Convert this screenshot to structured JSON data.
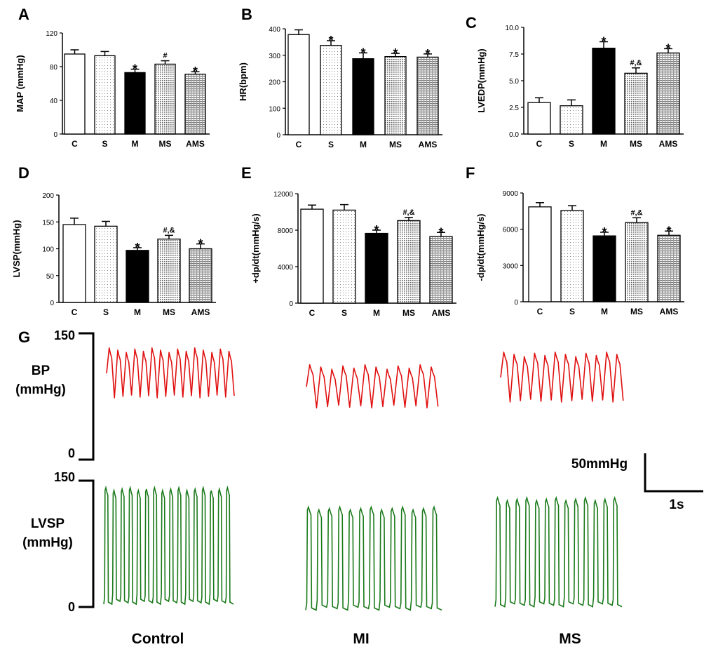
{
  "figure_id": "hemodynamics-figure",
  "chart_data": [
    {
      "panel": "A",
      "type": "bar",
      "ylabel": "MAP (mmHg)",
      "ylim": [
        0,
        120
      ],
      "yticks": [
        0,
        40,
        80,
        120
      ],
      "categories": [
        "C",
        "S",
        "M",
        "MS",
        "AMS"
      ],
      "values": [
        95,
        93,
        73,
        83,
        71
      ],
      "errors": [
        5,
        5,
        4,
        4,
        3
      ],
      "fills": [
        "white",
        "dots",
        "black",
        "dense",
        "grid"
      ],
      "annotations": [
        "",
        "",
        "*",
        "#",
        "*"
      ]
    },
    {
      "panel": "B",
      "type": "bar",
      "ylabel": "HR(bpm)",
      "ylim": [
        0,
        400
      ],
      "yticks": [
        0,
        100,
        200,
        300,
        400
      ],
      "categories": [
        "C",
        "S",
        "M",
        "MS",
        "AMS"
      ],
      "values": [
        378,
        337,
        287,
        295,
        293
      ],
      "errors": [
        18,
        18,
        22,
        12,
        12
      ],
      "fills": [
        "white",
        "dots",
        "black",
        "dense",
        "grid"
      ],
      "annotations": [
        "",
        "*",
        "*",
        "*",
        "*"
      ]
    },
    {
      "panel": "C",
      "type": "bar",
      "ylabel": "LVEDP(mmHg)",
      "ylim": [
        0,
        10
      ],
      "yticks": [
        "0.0",
        "2.5",
        "5.0",
        "7.5",
        "10.0"
      ],
      "categories": [
        "C",
        "S",
        "M",
        "MS",
        "AMS"
      ],
      "values": [
        2.95,
        2.65,
        8.05,
        5.7,
        7.6
      ],
      "errors": [
        0.45,
        0.55,
        0.6,
        0.5,
        0.4
      ],
      "fills": [
        "white",
        "dots",
        "black",
        "dense",
        "grid"
      ],
      "annotations": [
        "",
        "",
        "*",
        "#,&",
        "*"
      ]
    },
    {
      "panel": "D",
      "type": "bar",
      "ylabel": "LVSP(mmHg)",
      "ylim": [
        0,
        200
      ],
      "yticks": [
        0,
        50,
        100,
        150,
        200
      ],
      "categories": [
        "C",
        "S",
        "M",
        "MS",
        "AMS"
      ],
      "values": [
        145,
        142,
        97,
        118,
        100
      ],
      "errors": [
        12,
        9,
        5,
        7,
        9
      ],
      "fills": [
        "white",
        "dots",
        "black",
        "dense",
        "grid"
      ],
      "annotations": [
        "",
        "",
        "*",
        "#,&",
        "*"
      ]
    },
    {
      "panel": "E",
      "type": "bar",
      "ylabel": "+dp/dt(mmHg/s)",
      "ylim": [
        0,
        12000
      ],
      "yticks": [
        0,
        4000,
        8000,
        12000
      ],
      "categories": [
        "C",
        "S",
        "M",
        "MS",
        "AMS"
      ],
      "values": [
        10300,
        10200,
        7650,
        9050,
        7300
      ],
      "errors": [
        450,
        600,
        350,
        350,
        450
      ],
      "fills": [
        "white",
        "dots",
        "black",
        "dense",
        "grid"
      ],
      "annotations": [
        "",
        "",
        "*",
        "#,&",
        "*"
      ]
    },
    {
      "panel": "F",
      "type": "bar",
      "ylabel": "-dp/dt(mmHg/s)",
      "ylim": [
        0,
        9000
      ],
      "yticks": [
        0,
        3000,
        6000,
        9000
      ],
      "categories": [
        "C",
        "S",
        "M",
        "MS",
        "AMS"
      ],
      "values": [
        7850,
        7550,
        5450,
        6550,
        5500
      ],
      "errors": [
        350,
        400,
        300,
        400,
        350
      ],
      "fills": [
        "white",
        "dots",
        "black",
        "dense",
        "grid"
      ],
      "annotations": [
        "",
        "",
        "*",
        "#,&",
        "*"
      ]
    }
  ],
  "traces": {
    "panel": "G",
    "scale_max": "150",
    "scale_min": "0",
    "bp_label": [
      "BP",
      "(mmHg)"
    ],
    "lvsp_label": [
      "LVSP",
      "(mmHg)"
    ],
    "scalebar_value": "50mmHg",
    "scalebar_time": "1s",
    "groups": [
      "Control",
      "MI",
      "MS"
    ],
    "bp_color": "#e01010",
    "lvsp_color": "#1a7a1a",
    "bp": [
      {
        "group": "Control",
        "cycles": 15,
        "peak_mmHg": 130,
        "trough_mmHg": 75
      },
      {
        "group": "MI",
        "cycles": 12,
        "peak_mmHg": 110,
        "trough_mmHg": 63
      },
      {
        "group": "MS",
        "cycles": 12,
        "peak_mmHg": 125,
        "trough_mmHg": 70
      }
    ],
    "lvsp": [
      {
        "group": "Control",
        "cycles": 16,
        "peak_mmHg": 140,
        "trough_mmHg": 5
      },
      {
        "group": "MI",
        "cycles": 13,
        "peak_mmHg": 117,
        "trough_mmHg": -2
      },
      {
        "group": "MS",
        "cycles": 13,
        "peak_mmHg": 128,
        "trough_mmHg": 2
      }
    ]
  }
}
